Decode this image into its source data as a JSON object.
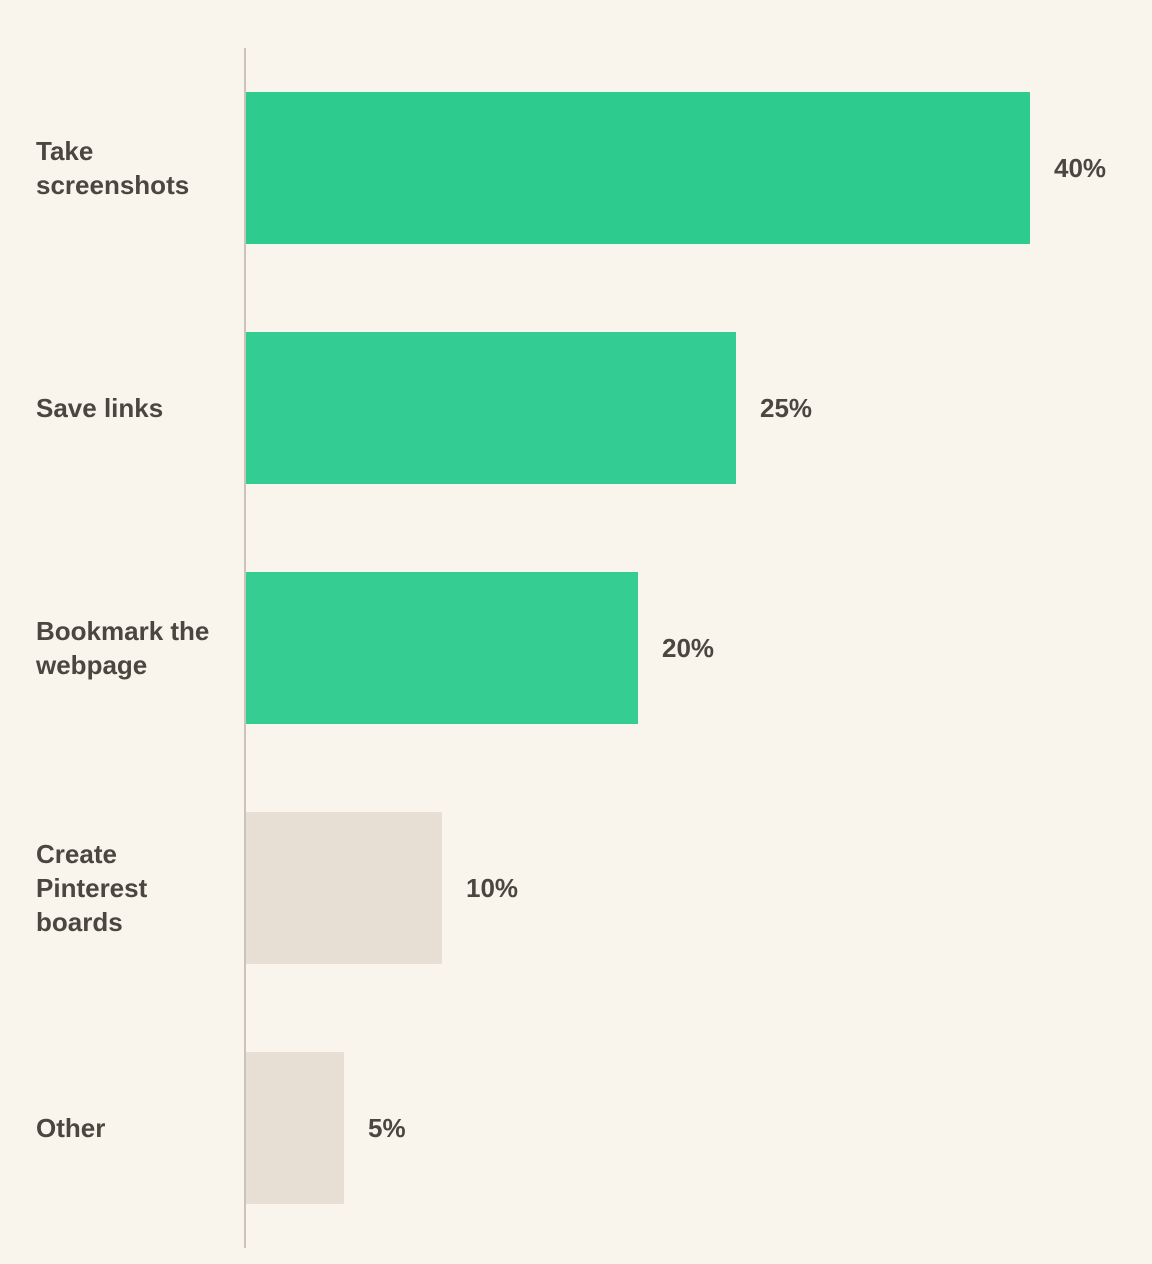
{
  "chart_data": {
    "type": "bar",
    "orientation": "horizontal",
    "categories": [
      "Take screenshots",
      "Save links",
      "Bookmark the webpage",
      "Create Pinterest boards",
      "Other"
    ],
    "values": [
      40,
      25,
      20,
      10,
      5
    ],
    "value_labels": [
      "40%",
      "25%",
      "20%",
      "10%",
      "5%"
    ],
    "highlighted": [
      true,
      true,
      true,
      false,
      false
    ],
    "xlim": [
      0,
      40
    ],
    "grid": false,
    "legend": "none",
    "colors": {
      "background": "#f9f5ec",
      "highlight": [
        "#2ecb8f",
        "#33cc92",
        "#36cd93"
      ],
      "muted": "#e7dfd3",
      "axis": "#c9c3b8",
      "text": "#4a4740"
    }
  }
}
